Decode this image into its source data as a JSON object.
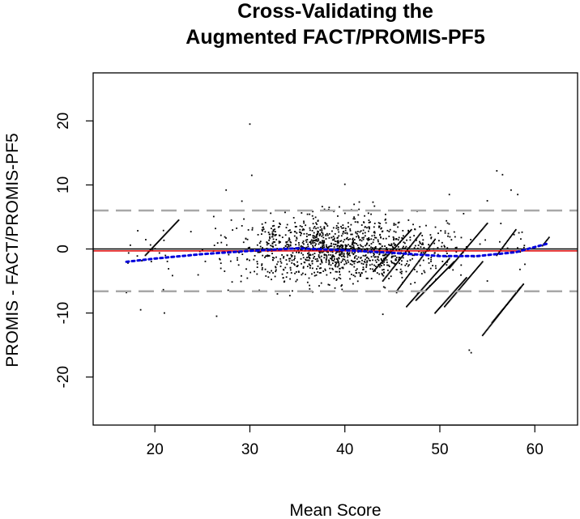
{
  "chart_data": {
    "type": "scatter",
    "title_lines": [
      "Cross-Validating the",
      "Augmented FACT/PROMIS-PF5"
    ],
    "xlabel": "Mean Score",
    "ylabel": "PROMIS - FACT/PROMIS-PF5",
    "xlim": [
      13.5,
      64.5
    ],
    "ylim": [
      -27.5,
      27.5
    ],
    "x_ticks": [
      "20",
      "30",
      "40",
      "50",
      "60"
    ],
    "y_ticks": [
      "-20",
      "-10",
      "0",
      "10",
      "20"
    ],
    "grid": false,
    "legend": "none",
    "reference_lines": [
      {
        "kind": "mean_difference",
        "y": -0.3,
        "color": "#e00000",
        "style": "solid"
      },
      {
        "kind": "zero",
        "y": 0,
        "color": "#000000",
        "style": "solid"
      },
      {
        "kind": "upper_limit_of_agreement",
        "y": 6.0,
        "color": "#a8a8a8",
        "style": "dashed"
      },
      {
        "kind": "lower_limit_of_agreement",
        "y": -6.6,
        "color": "#a8a8a8",
        "style": "dashed"
      }
    ],
    "smoother": {
      "color": "#0000dd",
      "style": "dotted",
      "x": [
        17,
        20,
        25,
        30,
        35,
        40,
        45,
        50,
        54,
        58,
        61.5
      ],
      "y": [
        -2.0,
        -1.5,
        -0.8,
        -0.3,
        0.1,
        -0.2,
        -0.6,
        -1.1,
        -1.1,
        -0.5,
        0.9
      ]
    },
    "cluster": {
      "x_mean": 39.5,
      "x_sd": 5.5,
      "y_sd": 2.6,
      "x_range": [
        24,
        53
      ],
      "count": 1250
    },
    "diagonal_runs": [
      {
        "x": [
          19.0,
          22.5
        ],
        "y": [
          -1.0,
          4.5
        ]
      },
      {
        "x": [
          43.0,
          47.0
        ],
        "y": [
          -3.5,
          3.0
        ]
      },
      {
        "x": [
          44.0,
          48.0
        ],
        "y": [
          -5.0,
          2.5
        ]
      },
      {
        "x": [
          45.5,
          49.5
        ],
        "y": [
          -6.5,
          1.5
        ]
      },
      {
        "x": [
          46.5,
          51.0
        ],
        "y": [
          -9.0,
          -1.5
        ]
      },
      {
        "x": [
          47.5,
          51.5
        ],
        "y": [
          -8.0,
          -2.0
        ]
      },
      {
        "x": [
          49.5,
          52.8
        ],
        "y": [
          -10.0,
          -4.5
        ]
      },
      {
        "x": [
          50.5,
          54.5
        ],
        "y": [
          -9.0,
          -2.0
        ]
      },
      {
        "x": [
          51.0,
          55.0
        ],
        "y": [
          -3.0,
          4.0
        ]
      },
      {
        "x": [
          54.5,
          58.5
        ],
        "y": [
          -13.5,
          -6.0
        ]
      },
      {
        "x": [
          55.5,
          58.8
        ],
        "y": [
          -11.5,
          -5.5
        ]
      },
      {
        "x": [
          56.0,
          58.0
        ],
        "y": [
          -1.0,
          3.0
        ]
      },
      {
        "x": [
          60.8,
          61.5
        ],
        "y": [
          0.5,
          1.8
        ]
      }
    ],
    "points": [
      {
        "x": 30.0,
        "y": 19.5
      },
      {
        "x": 30.2,
        "y": 11.5
      },
      {
        "x": 56.0,
        "y": 12.2
      },
      {
        "x": 56.6,
        "y": 11.6
      },
      {
        "x": 58.2,
        "y": 8.5
      },
      {
        "x": 53.1,
        "y": -15.8
      },
      {
        "x": 53.3,
        "y": -16.2
      },
      {
        "x": 18.5,
        "y": -9.5
      },
      {
        "x": 21.0,
        "y": -10.0
      },
      {
        "x": 26.5,
        "y": -10.5
      },
      {
        "x": 17.0,
        "y": -6.8
      },
      {
        "x": 27.5,
        "y": 9.2
      },
      {
        "x": 40.0,
        "y": 10.1
      },
      {
        "x": 44.0,
        "y": -10.2
      },
      {
        "x": 51.0,
        "y": 8.5
      },
      {
        "x": 55.0,
        "y": -5.0
      },
      {
        "x": 57.5,
        "y": 9.2
      }
    ]
  }
}
